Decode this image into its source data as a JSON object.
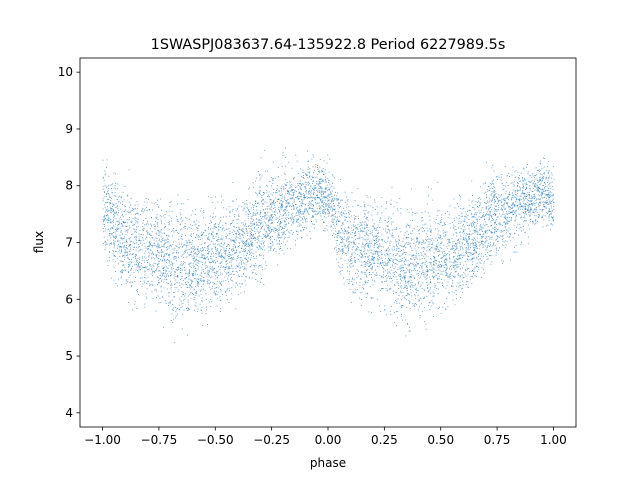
{
  "chart_data": {
    "type": "scatter",
    "title": "1SWASPJ083637.64-135922.8 Period 6227989.5s",
    "xlabel": "phase",
    "ylabel": "flux",
    "xlim": [
      -1.1,
      1.1
    ],
    "ylim": [
      3.75,
      10.25
    ],
    "x_ticks": [
      -1.0,
      -0.75,
      -0.5,
      -0.25,
      0.0,
      0.25,
      0.5,
      0.75,
      1.0
    ],
    "x_tick_labels": [
      "−1.00",
      "−0.75",
      "−0.50",
      "−0.25",
      "0.00",
      "0.25",
      "0.50",
      "0.75",
      "1.00"
    ],
    "y_ticks": [
      4,
      5,
      6,
      7,
      8,
      9,
      10
    ],
    "y_tick_labels": [
      "4",
      "5",
      "6",
      "7",
      "8",
      "9",
      "10"
    ],
    "grid": false,
    "legend": "none",
    "marker_color": "#1f77b4",
    "series": [
      {
        "x": [
          -1.0,
          -0.95,
          -0.9,
          -0.85,
          -0.8,
          -0.75,
          -0.7,
          -0.65,
          -0.6,
          -0.55,
          -0.5,
          -0.45,
          -0.4,
          -0.35,
          -0.3,
          -0.25,
          -0.2,
          -0.15,
          -0.1,
          -0.05,
          0.0,
          0.05,
          0.1,
          0.15,
          0.2,
          0.25,
          0.3,
          0.35,
          0.4,
          0.45,
          0.5,
          0.55,
          0.6,
          0.65,
          0.7,
          0.75,
          0.8,
          0.85,
          0.9,
          0.95,
          1.0
        ],
        "y": [
          7.8,
          7.2,
          7.0,
          6.9,
          6.9,
          6.8,
          6.6,
          6.6,
          6.6,
          6.7,
          6.8,
          6.8,
          6.9,
          7.1,
          7.4,
          7.5,
          7.6,
          7.7,
          7.8,
          7.9,
          7.8,
          7.2,
          7.0,
          6.9,
          6.9,
          6.8,
          6.6,
          6.6,
          6.6,
          6.7,
          6.8,
          6.8,
          6.9,
          7.1,
          7.4,
          7.5,
          7.6,
          7.7,
          7.8,
          7.9,
          7.7
        ],
        "scatter_spread": [
          0.5,
          0.55,
          0.6,
          0.6,
          0.55,
          0.6,
          0.65,
          0.65,
          0.6,
          0.6,
          0.55,
          0.55,
          0.55,
          0.5,
          0.55,
          0.5,
          0.5,
          0.45,
          0.4,
          0.35,
          0.35,
          0.5,
          0.55,
          0.6,
          0.55,
          0.6,
          0.65,
          0.65,
          0.6,
          0.6,
          0.55,
          0.55,
          0.55,
          0.5,
          0.55,
          0.5,
          0.5,
          0.45,
          0.4,
          0.35,
          0.4
        ]
      }
    ]
  }
}
